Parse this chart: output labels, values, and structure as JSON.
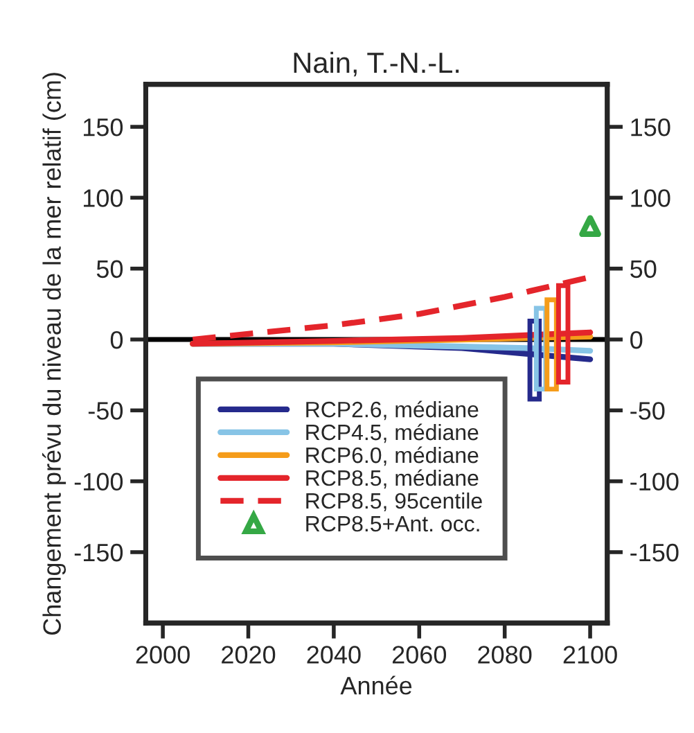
{
  "chart_data": {
    "type": "line",
    "title": "Nain, T.-N.-L.",
    "xlabel": "Année",
    "ylabel": "Changement prévu du niveau de la mer relatif (cm)",
    "xlim": [
      1996,
      2104
    ],
    "xticks": [
      2000,
      2020,
      2040,
      2060,
      2080,
      2100
    ],
    "ylim": [
      -200,
      180
    ],
    "yticks": [
      -150,
      -100,
      -50,
      0,
      50,
      100,
      150
    ],
    "y2lim": [
      -200,
      180
    ],
    "y2ticks": [
      -150,
      -100,
      -50,
      0,
      50,
      100,
      150
    ],
    "grid": false,
    "legend": "bottom left",
    "ref_lines": [
      {
        "axis": "y",
        "value": 0,
        "color": "#000000"
      }
    ],
    "series": [
      {
        "name": "RCP2.6, médiane",
        "color": "#252a8c",
        "x": [
          2007,
          2040,
          2070,
          2085,
          2100
        ],
        "values": [
          -3,
          -3,
          -6,
          -10,
          -14
        ]
      },
      {
        "name": "RCP4.5, médiane",
        "color": "#87c4e6",
        "x": [
          2007,
          2040,
          2070,
          2085,
          2100
        ],
        "values": [
          -3,
          -3,
          -5,
          -6,
          -8
        ]
      },
      {
        "name": "RCP6.0, médiane",
        "color": "#f59c1a",
        "x": [
          2007,
          2040,
          2070,
          2100
        ],
        "values": [
          -3,
          -2,
          0,
          2
        ]
      },
      {
        "name": "RCP8.5, médiane",
        "color": "#e4252b",
        "x": [
          2007,
          2040,
          2070,
          2100
        ],
        "values": [
          -3,
          -1,
          1,
          5
        ]
      },
      {
        "name": "RCP8.5, 95centile",
        "color": "#e4252b",
        "line_style": "dashed",
        "x": [
          2007,
          2020,
          2040,
          2060,
          2080,
          2100
        ],
        "values": [
          0,
          4,
          10,
          18,
          30,
          44
        ]
      },
      {
        "name": "RCP8.5+Ant. occ.",
        "type": "scatter",
        "marker": "triangle",
        "color": "#35a845",
        "x": [
          2100
        ],
        "values": [
          80
        ]
      },
      {
        "type": "bar",
        "color": "#252a8c",
        "x": [
          2087
        ],
        "base": [
          -42
        ],
        "values": [
          55
        ]
      },
      {
        "type": "bar",
        "color": "#87c4e6",
        "x": [
          2088.5
        ],
        "base": [
          -35
        ],
        "values": [
          57
        ]
      },
      {
        "type": "bar",
        "color": "#f59c1a",
        "x": [
          2091
        ],
        "base": [
          -35
        ],
        "values": [
          63
        ]
      },
      {
        "type": "bar",
        "color": "#e4252b",
        "x": [
          2093.7
        ],
        "base": [
          -30
        ],
        "values": [
          68
        ]
      }
    ]
  }
}
